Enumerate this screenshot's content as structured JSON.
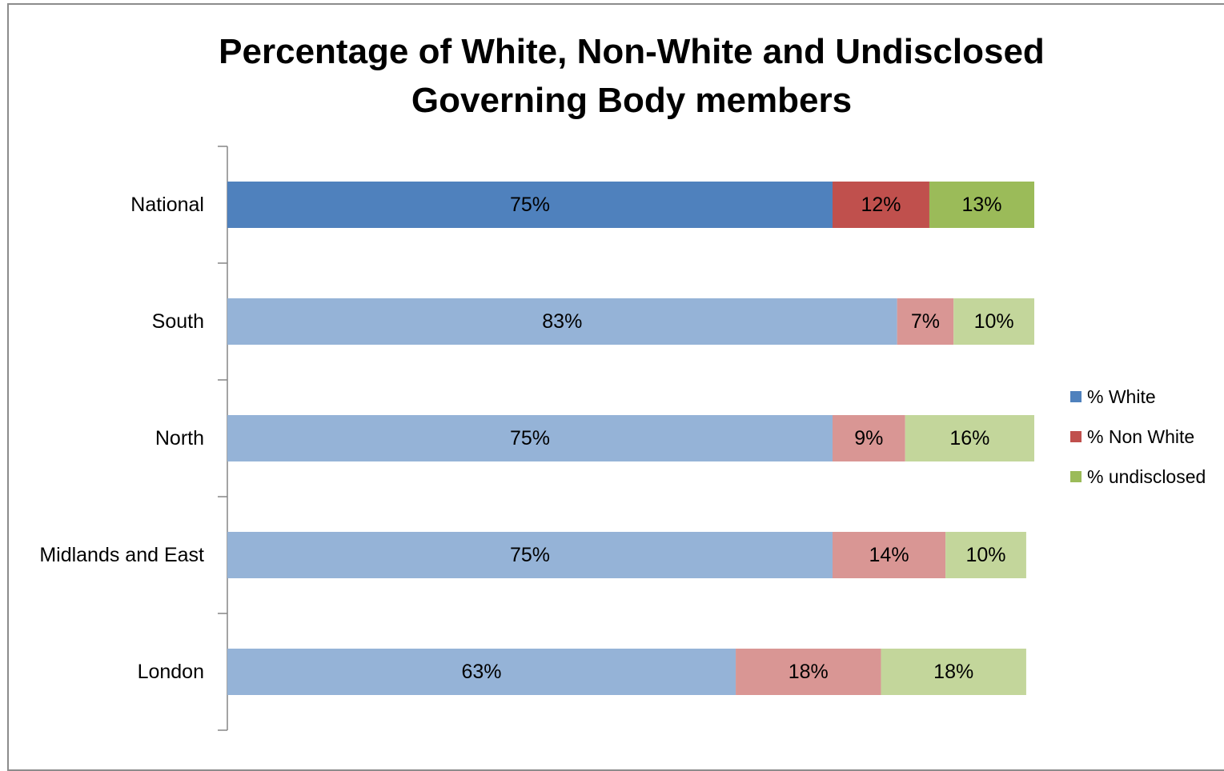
{
  "chart_data": {
    "type": "bar",
    "orientation": "horizontal",
    "stacked": true,
    "title": "Percentage of White, Non-White and Undisclosed Governing Body members",
    "title_lines": [
      "Percentage of White, Non-White and Undisclosed",
      "Governing Body members"
    ],
    "categories": [
      "National",
      "South",
      "North",
      "Midlands and East",
      "London"
    ],
    "series": [
      {
        "name": "% White",
        "values": [
          75,
          83,
          75,
          75,
          63
        ],
        "labels": [
          "75%",
          "83%",
          "75%",
          "75%",
          "63%"
        ],
        "color": "#4f81bd",
        "light_color": "#95b3d7"
      },
      {
        "name": "% Non White",
        "values": [
          12,
          7,
          9,
          14,
          18
        ],
        "labels": [
          "12%",
          "7%",
          "9%",
          "14%",
          "18%"
        ],
        "color": "#c0504d",
        "light_color": "#d99694"
      },
      {
        "name": "% undisclosed",
        "values": [
          13,
          10,
          16,
          10,
          18
        ],
        "labels": [
          "13%",
          "10%",
          "16%",
          "10%",
          "18%"
        ],
        "color": "#9bbb59",
        "light_color": "#c3d69b"
      }
    ],
    "highlighted_category": "National",
    "xlim": [
      0,
      100
    ],
    "grid": false,
    "legend_position": "right"
  }
}
